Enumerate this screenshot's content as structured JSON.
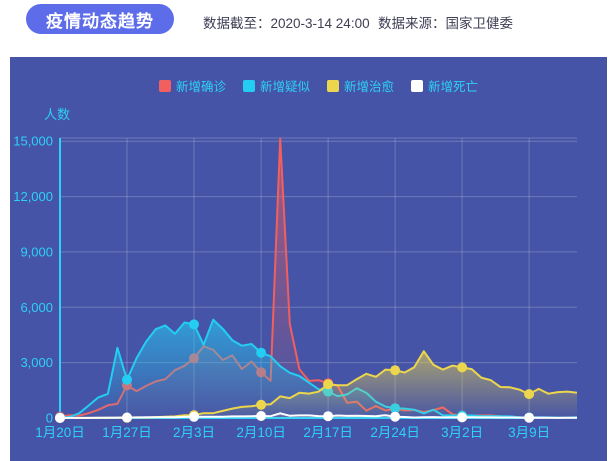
{
  "header": {
    "title": "疫情动态趋势",
    "data_cutoff": "数据截至：2020-3-14 24:00",
    "data_source": "数据来源：国家卫健委"
  },
  "colors": {
    "badge_bg": "#5d6ce8",
    "header_text": "#3e3e55",
    "panel_bg": "#4554a6",
    "axis_cyan": "#2ed1f5",
    "grid_line": "rgba(255,255,255,0.22)"
  },
  "chart_data": {
    "type": "area",
    "title": "",
    "ylabel": "人数",
    "ylim": [
      0,
      15000
    ],
    "y_ticks": [
      "0",
      "3,000",
      "6,000",
      "9,000",
      "12,000",
      "15,000"
    ],
    "y_tick_values": [
      0,
      3000,
      6000,
      9000,
      12000,
      15000
    ],
    "x_tick_labels": [
      "1月20日",
      "1月27日",
      "2月3日",
      "2月10日",
      "2月17日",
      "2月24日",
      "3月2日",
      "3月9日"
    ],
    "x_tick_indices": [
      0,
      7,
      14,
      21,
      28,
      35,
      42,
      49
    ],
    "n_points": 55,
    "marker_interval": 7,
    "grid": true,
    "legend_position": "top",
    "series": [
      {
        "name": "新增确诊",
        "color": "#f25f5f",
        "values": [
          77,
          149,
          131,
          259,
          444,
          688,
          769,
          1771,
          1459,
          1737,
          1982,
          2102,
          2590,
          2829,
          3235,
          3887,
          3694,
          3143,
          3399,
          2656,
          3062,
          2478,
          2015,
          15152,
          5090,
          2641,
          2009,
          2048,
          1886,
          1749,
          820,
          889,
          397,
          648,
          409,
          508,
          406,
          433,
          327,
          427,
          573,
          202,
          125,
          119,
          139,
          143,
          99,
          44,
          40,
          19,
          24,
          15,
          8,
          11,
          20
        ]
      },
      {
        "name": "新增疑似",
        "color": "#24cdf2",
        "values": [
          27,
          53,
          257,
          680,
          1118,
          1309,
          3806,
          2077,
          3248,
          4148,
          4812,
          5019,
          4562,
          5173,
          5072,
          3971,
          5328,
          4833,
          4214,
          3916,
          4008,
          3536,
          3342,
          2807,
          2450,
          2277,
          1918,
          1563,
          1432,
          1185,
          1277,
          1614,
          1361,
          882,
          620,
          530,
          508,
          452,
          248,
          452,
          141,
          141,
          129,
          143,
          102,
          102,
          99,
          84,
          41,
          31,
          31,
          33,
          21,
          18,
          36
        ]
      },
      {
        "name": "新增治愈",
        "color": "#ecd64d",
        "values": [
          0,
          0,
          0,
          6,
          3,
          11,
          9,
          9,
          43,
          21,
          47,
          72,
          85,
          147,
          157,
          262,
          261,
          387,
          510,
          600,
          632,
          716,
          744,
          1171,
          1081,
          1373,
          1323,
          1425,
          1824,
          1779,
          1779,
          2109,
          2393,
          2230,
          2623,
          2589,
          2467,
          2750,
          3622,
          2885,
          2623,
          2837,
          2742,
          2652,
          2189,
          2046,
          1681,
          1661,
          1535,
          1297,
          1578,
          1318,
          1403,
          1430,
          1373
        ]
      },
      {
        "name": "新增死亡",
        "color": "#ffffff",
        "values": [
          0,
          3,
          8,
          8,
          16,
          15,
          24,
          26,
          26,
          38,
          43,
          46,
          45,
          57,
          64,
          65,
          73,
          73,
          86,
          89,
          97,
          108,
          97,
          254,
          121,
          143,
          142,
          105,
          98,
          136,
          114,
          118,
          109,
          97,
          150,
          71,
          52,
          29,
          44,
          47,
          35,
          42,
          31,
          38,
          31,
          30,
          28,
          27,
          22,
          17,
          22,
          11,
          7,
          13,
          10
        ]
      }
    ]
  }
}
